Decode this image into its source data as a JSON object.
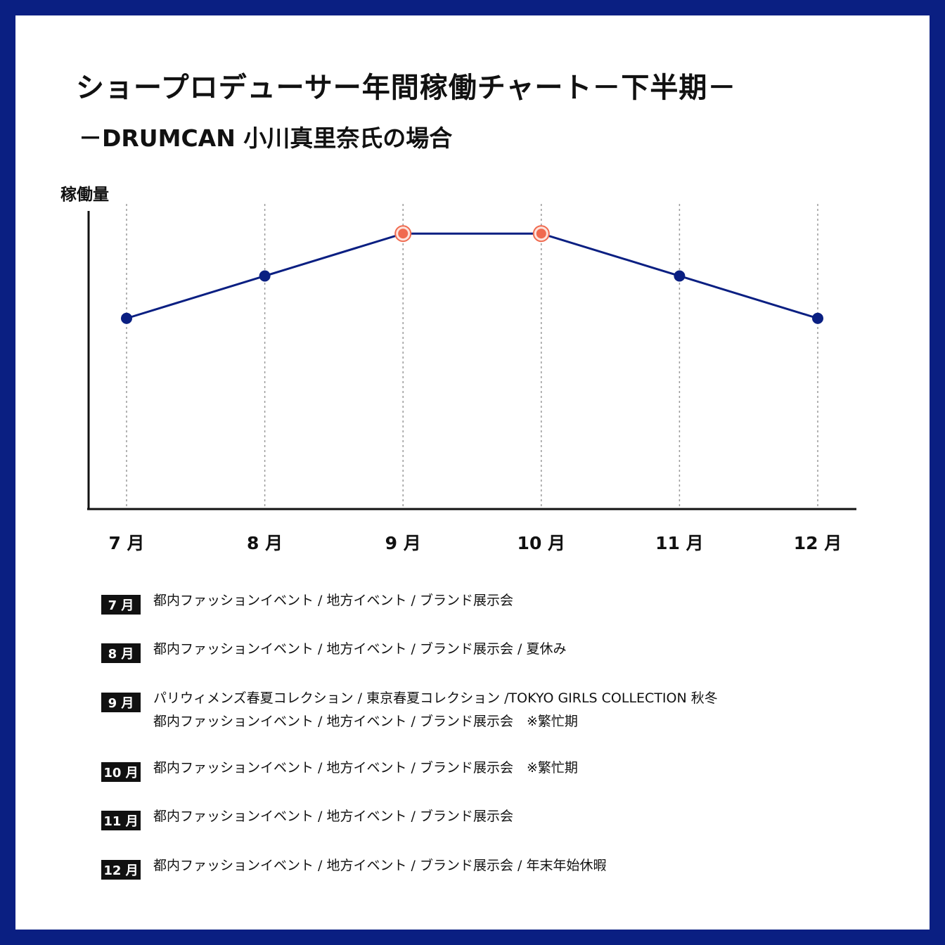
{
  "colors": {
    "frame": "#0a1f82",
    "line": "#0a1f82",
    "highlight": "#f06a4f",
    "text": "#111111"
  },
  "title": "ショープロデューサー年間稼働チャート－下半期－",
  "subtitle": "－DRUMCAN 小川真里奈氏の場合",
  "chart_data": {
    "type": "line",
    "ylabel": "稼働量",
    "xlabel": "",
    "categories": [
      "7 月",
      "8 月",
      "9 月",
      "10 月",
      "11 月",
      "12 月"
    ],
    "values": [
      2,
      3,
      4,
      4,
      3,
      2
    ],
    "ylim": [
      -2.5,
      4.7
    ],
    "highlight": [
      false,
      false,
      true,
      true,
      false,
      false
    ],
    "grid": "vertical dotted lines at each month"
  },
  "legend": [
    {
      "month": "7 月",
      "lines": [
        "都内ファッションイベント / 地方イベント / ブランド展示会"
      ]
    },
    {
      "month": "8 月",
      "lines": [
        "都内ファッションイベント / 地方イベント / ブランド展示会 / 夏休み"
      ]
    },
    {
      "month": "9 月",
      "lines": [
        "パリウィメンズ春夏コレクション / 東京春夏コレクション /TOKYO GIRLS COLLECTION 秋冬",
        "都内ファッションイベント / 地方イベント / ブランド展示会　※繁忙期"
      ]
    },
    {
      "month": "10 月",
      "lines": [
        "都内ファッションイベント / 地方イベント / ブランド展示会　※繁忙期"
      ]
    },
    {
      "month": "11 月",
      "lines": [
        "都内ファッションイベント / 地方イベント / ブランド展示会"
      ]
    },
    {
      "month": "12 月",
      "lines": [
        "都内ファッションイベント / 地方イベント / ブランド展示会 / 年末年始休暇"
      ]
    }
  ]
}
